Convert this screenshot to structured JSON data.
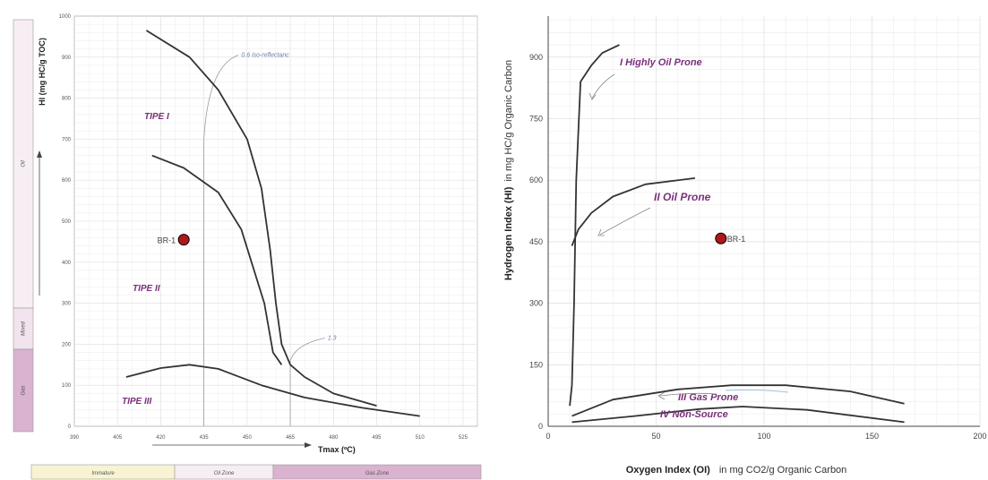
{
  "chart_data": [
    {
      "type": "line",
      "title": "",
      "xlabel": "Tmax (ºC)",
      "ylabel": "HI (mg HC/g TOC)",
      "xlim": [
        390,
        530
      ],
      "ylim": [
        0,
        1000
      ],
      "x_ticks": [
        "390",
        "405",
        "420",
        "435",
        "450",
        "465",
        "480",
        "495",
        "510",
        "525"
      ],
      "y_ticks": [
        "0",
        "100",
        "200",
        "300",
        "400",
        "500",
        "600",
        "700",
        "800",
        "900",
        "1000"
      ],
      "grid": true,
      "series": [
        {
          "name": "TIPE I",
          "x": [
            415,
            430,
            440,
            450,
            455,
            458,
            460,
            462,
            465,
            470,
            480,
            495
          ],
          "y": [
            965,
            900,
            820,
            700,
            580,
            430,
            300,
            200,
            150,
            120,
            80,
            50
          ]
        },
        {
          "name": "TIPE II",
          "x": [
            417,
            428,
            440,
            448,
            456,
            459,
            462
          ],
          "y": [
            660,
            630,
            570,
            480,
            300,
            180,
            150
          ]
        },
        {
          "name": "TIPE III",
          "x": [
            408,
            420,
            430,
            440,
            455,
            470,
            490,
            510
          ],
          "y": [
            120,
            142,
            150,
            140,
            100,
            70,
            45,
            25
          ]
        }
      ],
      "points": [
        {
          "label": "BR-1",
          "x": 428,
          "y": 455
        }
      ],
      "annotations": {
        "iso_reflect_label": "0.6 iso-reflectanc",
        "iso_reflect_x": 435,
        "iso2_label": "1.3",
        "iso2_x": 465
      },
      "type_labels": [
        "TIPE I",
        "TIPE II",
        "TIPE III"
      ],
      "left_bands": [
        "Oil",
        "Mixed",
        "Gas"
      ],
      "bottom_bands": [
        "Immature",
        "Oil Zone",
        "Gas Zone"
      ],
      "colors": {
        "gas_band": "#d9b3cf",
        "mixed_band": "#f2e4ee",
        "oil_band": "#f7eef4",
        "immature_band": "#f7f3d3",
        "point": "#b01818",
        "curve": "#333333",
        "type_label": "#7a2f7a"
      }
    },
    {
      "type": "line",
      "title": "",
      "xlabel": "Oxygen Index (OI)",
      "xlabel_units": "in mg CO2/g Organic Carbon",
      "ylabel": "Hydrogen Index (HI)",
      "ylabel_units": "in mg HC/g Organic Carbon",
      "xlim": [
        0,
        200
      ],
      "ylim": [
        0,
        1000
      ],
      "x_ticks": [
        "0",
        "50",
        "100",
        "150",
        "200"
      ],
      "y_ticks": [
        "0",
        "150",
        "300",
        "450",
        "600",
        "750",
        "900"
      ],
      "grid": true,
      "series": [
        {
          "name": "I  Highly Oil Prone",
          "x": [
            10,
            11,
            12,
            13,
            15,
            20,
            25,
            33
          ],
          "y": [
            50,
            100,
            300,
            600,
            840,
            880,
            910,
            930
          ]
        },
        {
          "name": "II  Oil Prone",
          "x": [
            11,
            14,
            20,
            30,
            45,
            68
          ],
          "y": [
            440,
            480,
            520,
            560,
            590,
            605
          ]
        },
        {
          "name": "III  Gas Prone",
          "x": [
            11,
            30,
            60,
            85,
            110,
            140,
            165
          ],
          "y": [
            25,
            65,
            90,
            100,
            100,
            85,
            55
          ]
        },
        {
          "name": "IV  Non-Source",
          "x": [
            11,
            40,
            70,
            90,
            120,
            165
          ],
          "y": [
            10,
            25,
            42,
            48,
            40,
            10
          ]
        }
      ],
      "points": [
        {
          "label": "BR-1",
          "x": 80,
          "y": 458
        }
      ]
    }
  ]
}
